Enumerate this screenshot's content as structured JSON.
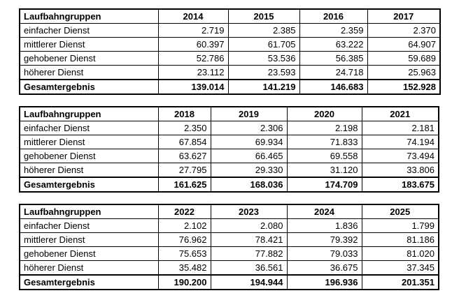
{
  "document": {
    "colors": {
      "text": "#000000",
      "border": "#000000",
      "background": "#ffffff"
    },
    "tables": [
      {
        "id": "2014-2017",
        "header_label": "Laufbahngruppen",
        "years": [
          "2014",
          "2015",
          "2016",
          "2017"
        ],
        "rows": [
          {
            "label": "einfacher Dienst",
            "values": [
              "2.719",
              "2.385",
              "2.359",
              "2.370"
            ]
          },
          {
            "label": "mittlerer Dienst",
            "values": [
              "60.397",
              "61.705",
              "63.222",
              "64.907"
            ]
          },
          {
            "label": "gehobener Dienst",
            "values": [
              "52.786",
              "53.536",
              "56.385",
              "59.689"
            ]
          },
          {
            "label": "höherer Dienst",
            "values": [
              "23.112",
              "23.593",
              "24.718",
              "25.963"
            ]
          }
        ],
        "total_row": {
          "label": "Gesamtergebnis",
          "values": [
            "139.014",
            "141.219",
            "146.683",
            "152.928"
          ]
        }
      },
      {
        "id": "2018-2021",
        "header_label": "Laufbahngruppen",
        "years": [
          "2018",
          "2019",
          "2020",
          "2021"
        ],
        "rows": [
          {
            "label": "einfacher Dienst",
            "values": [
              "2.350",
              "2.306",
              "2.198",
              "2.181"
            ]
          },
          {
            "label": "mittlerer Dienst",
            "values": [
              "67.854",
              "69.934",
              "71.833",
              "74.194"
            ]
          },
          {
            "label": "gehobener Dienst",
            "values": [
              "63.627",
              "66.465",
              "69.558",
              "73.494"
            ]
          },
          {
            "label": "höherer Dienst",
            "values": [
              "27.795",
              "29.330",
              "31.120",
              "33.806"
            ]
          }
        ],
        "total_row": {
          "label": "Gesamtergebnis",
          "values": [
            "161.625",
            "168.036",
            "174.709",
            "183.675"
          ]
        }
      },
      {
        "id": "2022-2025",
        "header_label": "Laufbahngruppen",
        "years": [
          "2022",
          "2023",
          "2024",
          "2025"
        ],
        "rows": [
          {
            "label": "einfacher Dienst",
            "values": [
              "2.102",
              "2.080",
              "1.836",
              "1.799"
            ]
          },
          {
            "label": "mittlerer Dienst",
            "values": [
              "76.962",
              "78.421",
              "79.392",
              "81.186"
            ]
          },
          {
            "label": "gehobener Dienst",
            "values": [
              "75.653",
              "77.882",
              "79.033",
              "81.020"
            ]
          },
          {
            "label": "höherer Dienst",
            "values": [
              "35.482",
              "36.561",
              "36.675",
              "37.345"
            ]
          }
        ],
        "total_row": {
          "label": "Gesamtergebnis",
          "values": [
            "190.200",
            "194.944",
            "196.936",
            "201.351"
          ]
        }
      }
    ]
  }
}
